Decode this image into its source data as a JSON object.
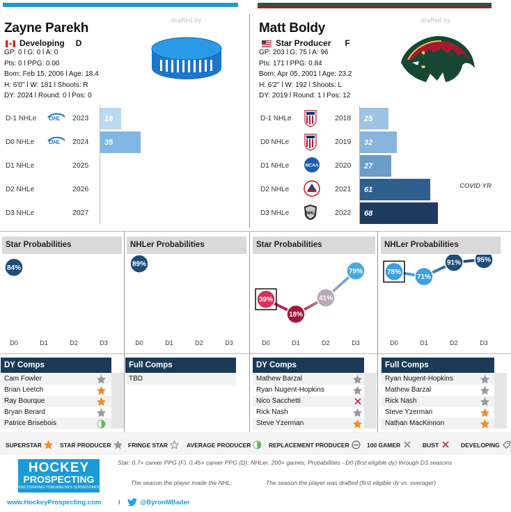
{
  "colors": {
    "parekh_bar": "#4ea4d9",
    "boldy_bar_top": "#1b5e3b",
    "boldy_bar_bottom": "#a6192e",
    "navy": "#1b3a57",
    "star_orange": "#f28c28",
    "star_gray": "#999999"
  },
  "left": {
    "drafted_label": "drafted by",
    "name": "Zayne Parekh",
    "status": "Developing",
    "position": "D",
    "stats": [
      "GP: 0 l G: 0 l A: 0",
      "Pts: 0 l PPG: 0.00",
      "Born: Feb 15, 2006 l Age: 18.4",
      "H: 6'0'' l W: 181 l Shoots: R",
      "DY: 2024 l Round: 0 l Pos: 0"
    ],
    "seasons": [
      {
        "label": "D-1 NHLe",
        "year": "2023",
        "value": 18,
        "value_text": "18",
        "league_icon": "ohl-icon"
      },
      {
        "label": "D0 NHLe",
        "year": "2024",
        "value": 35,
        "value_text": "35",
        "league_icon": "ohl-icon"
      },
      {
        "label": "D1 NHLe",
        "year": "2025",
        "value": 0,
        "value_text": "",
        "league_icon": ""
      },
      {
        "label": "D2 NHLe",
        "year": "2026",
        "value": 0,
        "value_text": "",
        "league_icon": ""
      },
      {
        "label": "D3 NHLe",
        "year": "2027",
        "value": 0,
        "value_text": "",
        "league_icon": ""
      }
    ],
    "star_prob_title": "Star Probabilities",
    "star_prob": [
      {
        "x": "D0",
        "value": 84,
        "text": "84%"
      }
    ],
    "nhler_prob_title": "NHLer Probabilities",
    "nhler_prob": [
      {
        "x": "D0",
        "value": 89,
        "text": "89%"
      }
    ],
    "dy_comps_title": "DY Comps",
    "dy_comps": [
      {
        "name": "Cam Fowler",
        "marker": "star-gray"
      },
      {
        "name": "Brian Leetch",
        "marker": "star-orange"
      },
      {
        "name": "Ray Bourque",
        "marker": "star-orange"
      },
      {
        "name": "Bryan Berard",
        "marker": "star-gray"
      },
      {
        "name": "Patrice Brisebois",
        "marker": "half-circle"
      }
    ],
    "full_comps_title": "Full Comps",
    "full_comps": [
      {
        "name": "TBD",
        "marker": ""
      }
    ]
  },
  "right": {
    "drafted_label": "drafted by",
    "name": "Matt Boldy",
    "status": "Star Producer",
    "position": "F",
    "stats": [
      "GP: 203 l G: 75 l A: 96",
      "Pts: 171 l PPG: 0.84",
      "Born: Apr 05, 2001 l Age: 23.2",
      "H: 6'2'' l W: 192 l Shoots: L",
      "DY: 2019 l Round: 1 l Pos: 12"
    ],
    "seasons": [
      {
        "label": "D-1 NHLe",
        "year": "2018",
        "value": 25,
        "value_text": "25",
        "league_icon": "usa-hockey-icon"
      },
      {
        "label": "D0 NHLe",
        "year": "2019",
        "value": 32,
        "value_text": "32",
        "league_icon": "usa-hockey-icon"
      },
      {
        "label": "D1 NHLe",
        "year": "2020",
        "value": 27,
        "value_text": "27",
        "league_icon": "ncaa-icon"
      },
      {
        "label": "D2 NHLe",
        "year": "2021",
        "value": 61,
        "value_text": "61",
        "league_icon": "ahl-icon"
      },
      {
        "label": "D3 NHLe",
        "year": "2022",
        "value": 68,
        "value_text": "68",
        "league_icon": "nhl-icon"
      }
    ],
    "covid_label": "COVID YR",
    "star_prob_title": "Star Probabilities",
    "star_prob": [
      {
        "x": "D0",
        "value": 39,
        "text": "39%",
        "color": "#d9305e"
      },
      {
        "x": "D1",
        "value": 18,
        "text": "18%",
        "color": "#a01540"
      },
      {
        "x": "D2",
        "value": 41,
        "text": "41%",
        "color": "#b8a8b4"
      },
      {
        "x": "D3",
        "value": 79,
        "text": "79%",
        "color": "#49a8dd"
      }
    ],
    "nhler_prob_title": "NHLer Probabilities",
    "nhler_prob": [
      {
        "x": "D0",
        "value": 78,
        "text": "78%",
        "color": "#3aa0e0"
      },
      {
        "x": "D1",
        "value": 71,
        "text": "71%",
        "color": "#3aa0e0"
      },
      {
        "x": "D2",
        "value": 91,
        "text": "91%",
        "color": "#1e4d7a"
      },
      {
        "x": "D3",
        "value": 95,
        "text": "95%",
        "color": "#1e4d7a"
      }
    ],
    "dy_comps_title": "DY Comps",
    "dy_comps": [
      {
        "name": "Mathew Barzal",
        "marker": "star-gray"
      },
      {
        "name": "Ryan Nugent-Hopkins",
        "marker": "star-gray"
      },
      {
        "name": "Nico Sacchetti",
        "marker": "x-red"
      },
      {
        "name": "Rick Nash",
        "marker": "star-gray"
      },
      {
        "name": "Steve Yzerman",
        "marker": "star-orange"
      }
    ],
    "full_comps_title": "Full Comps",
    "full_comps": [
      {
        "name": "Ryan Nugent-Hopkins",
        "marker": "star-gray"
      },
      {
        "name": "Mathew Barzal",
        "marker": "star-gray"
      },
      {
        "name": "Rick Nash",
        "marker": "star-gray"
      },
      {
        "name": "Steve Yzerman",
        "marker": "star-orange"
      },
      {
        "name": "Nathan MacKinnon",
        "marker": "star-orange"
      }
    ]
  },
  "x_ticks": [
    "D0",
    "D1",
    "D2",
    "D3"
  ],
  "legend": [
    {
      "label": "SUPERSTAR",
      "marker": "star-orange"
    },
    {
      "label": "STAR PRODUCER",
      "marker": "star-gray"
    },
    {
      "label": "FRINGE STAR",
      "marker": "star-outline"
    },
    {
      "label": "AVERAGE PRODUCER",
      "marker": "half-circle"
    },
    {
      "label": "REPLACEMENT PRODUCER",
      "marker": "minus-circle"
    },
    {
      "label": "100 GAMER",
      "marker": "x-gray"
    },
    {
      "label": "BUST",
      "marker": "x-red"
    },
    {
      "label": "DEVELOPING",
      "marker": "tag"
    }
  ],
  "footer": {
    "brand_line1": "HOCKEY",
    "brand_line2": "PROSPECTING",
    "brand_tagline": "UNCOVERING TOMORROW'S SUPERSTARS",
    "definition": "Star: 0.7+ career PPG (F), 0.45+ career PPG (D); NHLer: 200+ games; Probabilities - D0 (first eligible dy) through D3 seasons",
    "made_nhl": "The season the player made the NHL;",
    "drafted_note": "The season the player was drafted (first eligible dy vs. overager)",
    "website": "www.HockeyProspecting.com",
    "separator": "l",
    "twitter": "@ByronMBader"
  }
}
